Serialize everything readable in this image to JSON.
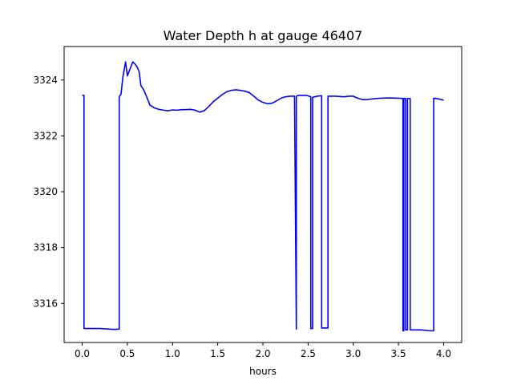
{
  "chart_data": {
    "type": "line",
    "title": "Water Depth h at gauge 46407",
    "xlabel": "hours",
    "ylabel": "",
    "xlim": [
      -0.2,
      4.2
    ],
    "ylim": [
      3314.6,
      3325.2
    ],
    "xticks": [
      0.0,
      0.5,
      1.0,
      1.5,
      2.0,
      2.5,
      3.0,
      3.5,
      4.0
    ],
    "xtick_labels": [
      "0.0",
      "0.5",
      "1.0",
      "1.5",
      "2.0",
      "2.5",
      "3.0",
      "3.5",
      "4.0"
    ],
    "yticks": [
      3316,
      3318,
      3320,
      3322,
      3324
    ],
    "ytick_labels": [
      "3316",
      "3318",
      "3320",
      "3322",
      "3324"
    ],
    "grid": false,
    "series": [
      {
        "color": "#0000ff",
        "x": [
          0.0,
          0.02,
          0.02,
          0.1,
          0.2,
          0.3,
          0.35,
          0.41,
          0.41,
          0.43,
          0.45,
          0.48,
          0.5,
          0.53,
          0.56,
          0.59,
          0.61,
          0.63,
          0.65,
          0.68,
          0.72,
          0.75,
          0.8,
          0.85,
          0.9,
          0.95,
          1.0,
          1.05,
          1.1,
          1.15,
          1.2,
          1.25,
          1.3,
          1.35,
          1.4,
          1.45,
          1.5,
          1.55,
          1.6,
          1.65,
          1.7,
          1.75,
          1.8,
          1.85,
          1.9,
          1.95,
          2.0,
          2.05,
          2.1,
          2.15,
          2.2,
          2.25,
          2.3,
          2.35,
          2.37,
          2.37,
          2.39,
          2.39,
          2.42,
          2.48,
          2.53,
          2.53,
          2.55,
          2.55,
          2.6,
          2.65,
          2.65,
          2.72,
          2.72,
          2.8,
          2.9,
          2.95,
          3.0,
          3.05,
          3.1,
          3.15,
          3.2,
          3.3,
          3.4,
          3.5,
          3.55,
          3.55,
          3.56,
          3.56,
          3.58,
          3.58,
          3.6,
          3.6,
          3.63,
          3.63,
          3.65,
          3.65,
          3.75,
          3.85,
          3.89,
          3.89,
          3.95,
          4.0
        ],
        "values": [
          3323.45,
          3323.45,
          3315.1,
          3315.1,
          3315.1,
          3315.08,
          3315.07,
          3315.08,
          3323.4,
          3323.5,
          3324.1,
          3324.65,
          3324.15,
          3324.4,
          3324.65,
          3324.55,
          3324.45,
          3324.3,
          3323.8,
          3323.65,
          3323.35,
          3323.1,
          3323.0,
          3322.95,
          3322.92,
          3322.9,
          3322.93,
          3322.92,
          3322.94,
          3322.94,
          3322.95,
          3322.92,
          3322.85,
          3322.9,
          3323.05,
          3323.22,
          3323.35,
          3323.48,
          3323.58,
          3323.63,
          3323.65,
          3323.63,
          3323.6,
          3323.55,
          3323.42,
          3323.28,
          3323.2,
          3323.15,
          3323.17,
          3323.25,
          3323.35,
          3323.4,
          3323.42,
          3323.42,
          3315.08,
          3323.42,
          3323.45,
          3323.45,
          3323.45,
          3323.45,
          3323.4,
          3315.1,
          3315.1,
          3323.38,
          3323.42,
          3323.44,
          3315.12,
          3315.12,
          3323.42,
          3323.42,
          3323.4,
          3323.42,
          3323.42,
          3323.35,
          3323.3,
          3323.3,
          3323.32,
          3323.35,
          3323.36,
          3323.35,
          3323.34,
          3315.02,
          3315.02,
          3323.34,
          3323.34,
          3315.05,
          3315.05,
          3323.34,
          3323.34,
          3315.05,
          3315.05,
          3315.05,
          3315.05,
          3315.02,
          3315.02,
          3323.35,
          3323.32,
          3323.28
        ]
      }
    ]
  }
}
